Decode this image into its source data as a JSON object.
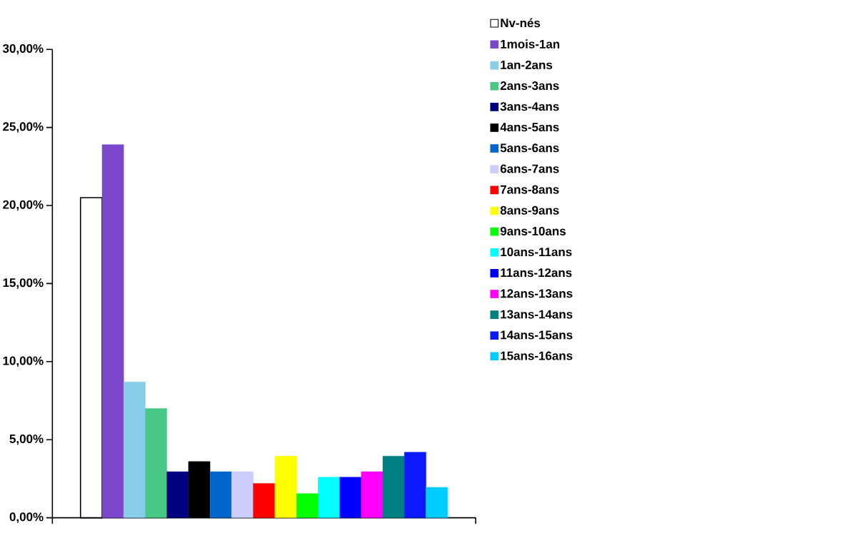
{
  "chart_data": {
    "type": "bar",
    "categories": [
      null
    ],
    "ylim": [
      0,
      30
    ],
    "yticks": [
      {
        "value": 0,
        "label": "0,00%"
      },
      {
        "value": 5,
        "label": "5,00%"
      },
      {
        "value": 10,
        "label": "10,00%"
      },
      {
        "value": 15,
        "label": "15,00%"
      },
      {
        "value": 20,
        "label": "20,00%"
      },
      {
        "value": 25,
        "label": "25,00%"
      },
      {
        "value": 30,
        "label": "30,00%"
      }
    ],
    "legend": "right",
    "series": [
      {
        "name": "Nv-nés",
        "color": "#ffffff",
        "values": [
          20.5
        ]
      },
      {
        "name": "1mois-1an",
        "color": "#7b48cc",
        "values": [
          23.9
        ]
      },
      {
        "name": "1an-2ans",
        "color": "#87ceeb",
        "values": [
          8.7
        ]
      },
      {
        "name": "2ans-3ans",
        "color": "#48c885",
        "values": [
          7.0
        ]
      },
      {
        "name": "3ans-4ans",
        "color": "#000080",
        "values": [
          2.95
        ]
      },
      {
        "name": "4ans-5ans",
        "color": "#000000",
        "values": [
          3.6
        ]
      },
      {
        "name": "5ans-6ans",
        "color": "#0066cc",
        "values": [
          2.95
        ]
      },
      {
        "name": "6ans-7ans",
        "color": "#ccccff",
        "values": [
          2.95
        ]
      },
      {
        "name": "7ans-8ans",
        "color": "#ff0000",
        "values": [
          2.2
        ]
      },
      {
        "name": "8ans-9ans",
        "color": "#ffff00",
        "values": [
          3.95
        ]
      },
      {
        "name": "9ans-10ans",
        "color": "#00ff00",
        "values": [
          1.55
        ]
      },
      {
        "name": "10ans-11ans",
        "color": "#00ffff",
        "values": [
          2.6
        ]
      },
      {
        "name": "11ans-12ans",
        "color": "#0000ff",
        "values": [
          2.6
        ]
      },
      {
        "name": "12ans-13ans",
        "color": "#ff00ff",
        "values": [
          2.95
        ]
      },
      {
        "name": "13ans-14ans",
        "color": "#008080",
        "values": [
          3.95
        ]
      },
      {
        "name": "14ans-15ans",
        "color": "#0d1aff",
        "values": [
          4.2
        ]
      },
      {
        "name": "15ans-16ans",
        "color": "#00ccff",
        "values": [
          1.95
        ]
      }
    ]
  }
}
